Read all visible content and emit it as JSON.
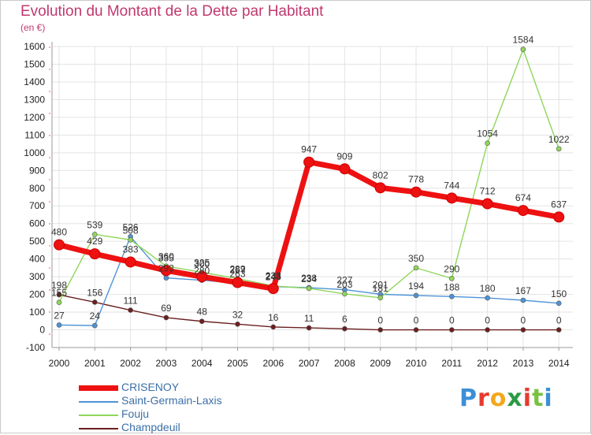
{
  "title": "Evolution du Montant de la Dette par Habitant",
  "unit": "(en €)",
  "logo": "Proxiti",
  "logo_colors": [
    "#3c8fd6",
    "#e63b2e",
    "#f2a81d",
    "#2b9a45",
    "#e63b2e",
    "#7ac143",
    "#3c8fd6"
  ],
  "chart_data": {
    "type": "line",
    "x": [
      "2000",
      "2001",
      "2002",
      "2003",
      "2004",
      "2005",
      "2006",
      "2007",
      "2008",
      "2009",
      "2010",
      "2011",
      "2012",
      "2013",
      "2014"
    ],
    "ylim": [
      -100,
      1600
    ],
    "yticks": [
      -100,
      0,
      100,
      200,
      300,
      400,
      500,
      600,
      700,
      800,
      900,
      1000,
      1100,
      1200,
      1300,
      1400,
      1500,
      1600
    ],
    "grid": true,
    "legend_position": "bottom-left",
    "series": [
      {
        "name": "CRISENOY",
        "color": "#ee1111",
        "values": [
          480,
          429,
          383,
          335,
          300,
          267,
          233,
          947,
          909,
          802,
          778,
          744,
          712,
          674,
          637
        ]
      },
      {
        "name": "Saint-Germain-Laxis",
        "color": "#4f93d6",
        "values": [
          27,
          24,
          526,
          293,
          280,
          263,
          244,
          238,
          227,
          201,
          194,
          188,
          180,
          167,
          150
        ]
      },
      {
        "name": "Fouju",
        "color": "#8fd65a",
        "values": [
          155,
          539,
          508,
          360,
          325,
          289,
          248,
          234,
          203,
          181,
          350,
          290,
          1054,
          1584,
          1022
        ]
      },
      {
        "name": "Champdeuil",
        "color": "#6b1f1f",
        "values": [
          198,
          156,
          111,
          69,
          48,
          32,
          16,
          11,
          6,
          0,
          0,
          0,
          0,
          0,
          0
        ]
      }
    ]
  }
}
